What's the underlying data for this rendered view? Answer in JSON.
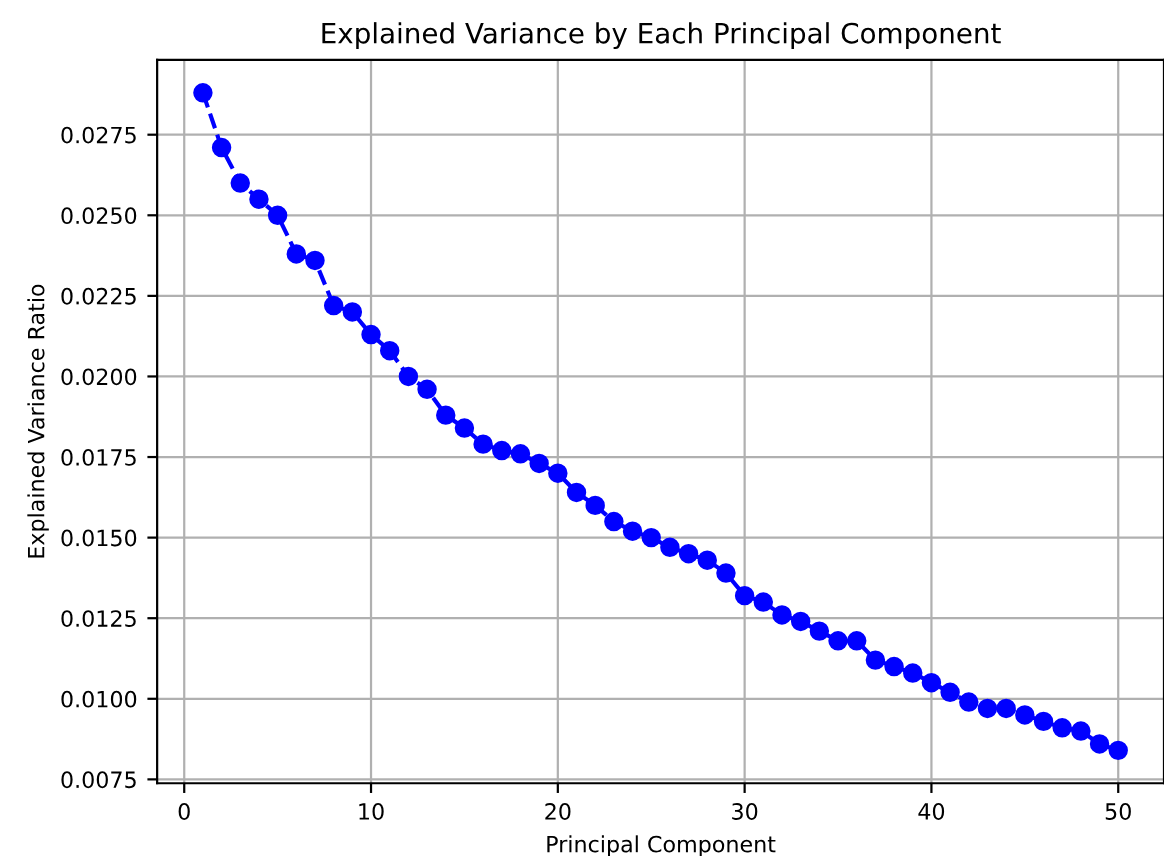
{
  "chart_data": {
    "type": "line",
    "title": "Explained Variance by Each Principal Component",
    "xlabel": "Principal Component",
    "ylabel": "Explained Variance Ratio",
    "x": [
      1,
      2,
      3,
      4,
      5,
      6,
      7,
      8,
      9,
      10,
      11,
      12,
      13,
      14,
      15,
      16,
      17,
      18,
      19,
      20,
      21,
      22,
      23,
      24,
      25,
      26,
      27,
      28,
      29,
      30,
      31,
      32,
      33,
      34,
      35,
      36,
      37,
      38,
      39,
      40,
      41,
      42,
      43,
      44,
      45,
      46,
      47,
      48,
      49,
      50
    ],
    "series": [
      {
        "color": "#0000ff",
        "values": [
          0.0288,
          0.0271,
          0.026,
          0.0255,
          0.025,
          0.0238,
          0.0236,
          0.0222,
          0.022,
          0.0213,
          0.0208,
          0.02,
          0.0196,
          0.0188,
          0.0184,
          0.0179,
          0.0177,
          0.0176,
          0.0173,
          0.017,
          0.0164,
          0.016,
          0.0155,
          0.0152,
          0.015,
          0.0147,
          0.0145,
          0.0143,
          0.0139,
          0.0132,
          0.013,
          0.0126,
          0.0124,
          0.0121,
          0.0118,
          0.0118,
          0.0112,
          0.011,
          0.0108,
          0.0105,
          0.0102,
          0.0099,
          0.0097,
          0.0097,
          0.0095,
          0.0093,
          0.0091,
          0.009,
          0.0086,
          0.0084
        ]
      }
    ],
    "xlim": [
      -1.45,
      52.45
    ],
    "ylim": [
      0.00738,
      0.02982
    ],
    "xticks": [
      0,
      10,
      20,
      30,
      40,
      50
    ],
    "yticks": [
      {
        "value": 0.0075,
        "label": "0.0075"
      },
      {
        "value": 0.01,
        "label": "0.0100"
      },
      {
        "value": 0.0125,
        "label": "0.0125"
      },
      {
        "value": 0.015,
        "label": "0.0150"
      },
      {
        "value": 0.0175,
        "label": "0.0175"
      },
      {
        "value": 0.02,
        "label": "0.0200"
      },
      {
        "value": 0.0225,
        "label": "0.0225"
      },
      {
        "value": 0.025,
        "label": "0.0250"
      },
      {
        "value": 0.0275,
        "label": "0.0275"
      }
    ],
    "grid": true,
    "marker": "circle",
    "line_style": "dashed",
    "legend": false
  }
}
